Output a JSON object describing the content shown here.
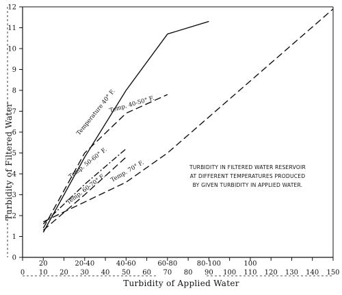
{
  "chart_data": {
    "type": "line",
    "xlabel": "Turbidity of Applied Water",
    "ylabel": "Turbidity of Filtered Water",
    "xlim": [
      0,
      150
    ],
    "ylim": [
      0,
      12
    ],
    "xticks": [
      "0",
      "10",
      "20",
      "30",
      "40",
      "50",
      "60",
      "70",
      "80",
      "90",
      "100",
      "110",
      "120",
      "130",
      "140",
      "150"
    ],
    "yticks": [
      "0",
      "1",
      "2",
      "3",
      "4",
      "5",
      "6",
      "7",
      "8",
      "9",
      "10",
      "11",
      "12"
    ],
    "grid": false,
    "annotation_lines": [
      "TURBIDITY IN FILTERED WATER RESERVOIR",
      "AT DIFFERENT TEMPERATURES PRODUCED",
      "BY GIVEN TURBIDITY IN APPLIED WATER."
    ],
    "extra_x_labels": [
      {
        "text": "20",
        "x": 10
      },
      {
        "text": "20-40",
        "x": 30
      },
      {
        "text": "40-60",
        "x": 50
      },
      {
        "text": "60-80",
        "x": 70
      },
      {
        "text": "80-100",
        "x": 90
      },
      {
        "text": "100",
        "x": 110
      }
    ],
    "series": [
      {
        "name": "Temperature 40° F.",
        "style": "solid",
        "x": [
          10,
          30,
          50,
          70,
          90
        ],
        "y": [
          1.2,
          4.8,
          8.0,
          10.7,
          11.3
        ],
        "label_at": [
          36,
          6.9
        ],
        "label_angle": -51
      },
      {
        "name": "Temp. 40-50° F.",
        "style": "long-dash",
        "x": [
          10,
          30,
          50,
          70
        ],
        "y": [
          1.4,
          5.0,
          6.9,
          7.8
        ],
        "label_at": [
          53,
          7.25
        ],
        "label_angle": -16
      },
      {
        "name": "Temp. 50-60° F.",
        "style": "dash-dot",
        "x": [
          10,
          30,
          50
        ],
        "y": [
          1.6,
          3.5,
          5.2
        ],
        "label_at": [
          32,
          4.45
        ],
        "label_angle": -38
      },
      {
        "name": "Temp. 60-70° F.",
        "style": "long-dash",
        "x": [
          10,
          30,
          50
        ],
        "y": [
          1.3,
          3.0,
          4.8
        ],
        "label_at": [
          31,
          3.2
        ],
        "label_angle": -37
      },
      {
        "name": "Temp. 70° F.",
        "style": "long-dash",
        "x": [
          10,
          50,
          70,
          150
        ],
        "y": [
          1.7,
          3.6,
          5.0,
          11.9
        ],
        "label_at": [
          51,
          4.05
        ],
        "label_angle": -30
      }
    ]
  }
}
